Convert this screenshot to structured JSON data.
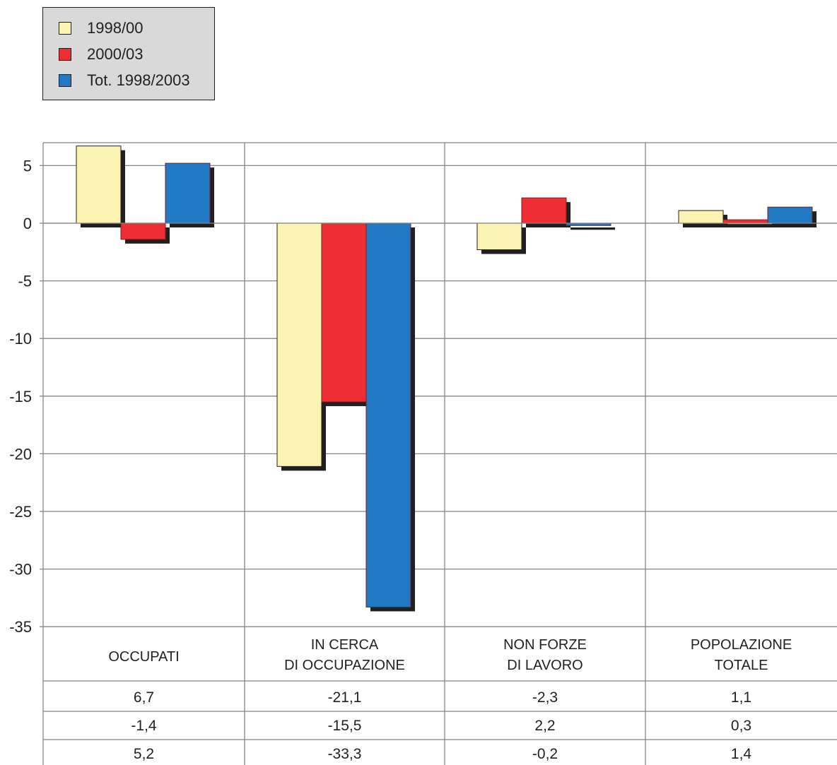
{
  "chart_data": {
    "type": "bar",
    "categories": [
      [
        "OCCUPATI"
      ],
      [
        "IN CERCA",
        "DI OCCUPAZIONE"
      ],
      [
        "NON FORZE",
        "DI LAVORO"
      ],
      [
        "POPOLAZIONE",
        "TOTALE"
      ]
    ],
    "series": [
      {
        "name": "1998/00",
        "color": "#fbf3b1",
        "values": [
          6.7,
          -21.1,
          -2.3,
          1.1
        ],
        "labels": [
          "6,7",
          "-21,1",
          "-2,3",
          "1,1"
        ]
      },
      {
        "name": "2000/03",
        "color": "#ee2d35",
        "values": [
          -1.4,
          -15.5,
          2.2,
          0.3
        ],
        "labels": [
          "-1,4",
          "-15,5",
          "2,2",
          "0,3"
        ]
      },
      {
        "name": "Tot. 1998/2003",
        "color": "#2079c2",
        "values": [
          5.2,
          -33.3,
          -0.2,
          1.4
        ],
        "labels": [
          "5,2",
          "-33,3",
          "-0,2",
          "1,4"
        ]
      }
    ],
    "yticks": [
      5,
      0,
      -5,
      -10,
      -15,
      -20,
      -25,
      -30,
      -35
    ],
    "ylim": [
      -35,
      7
    ],
    "grid": true,
    "legend": "top-left",
    "data_table": true
  }
}
